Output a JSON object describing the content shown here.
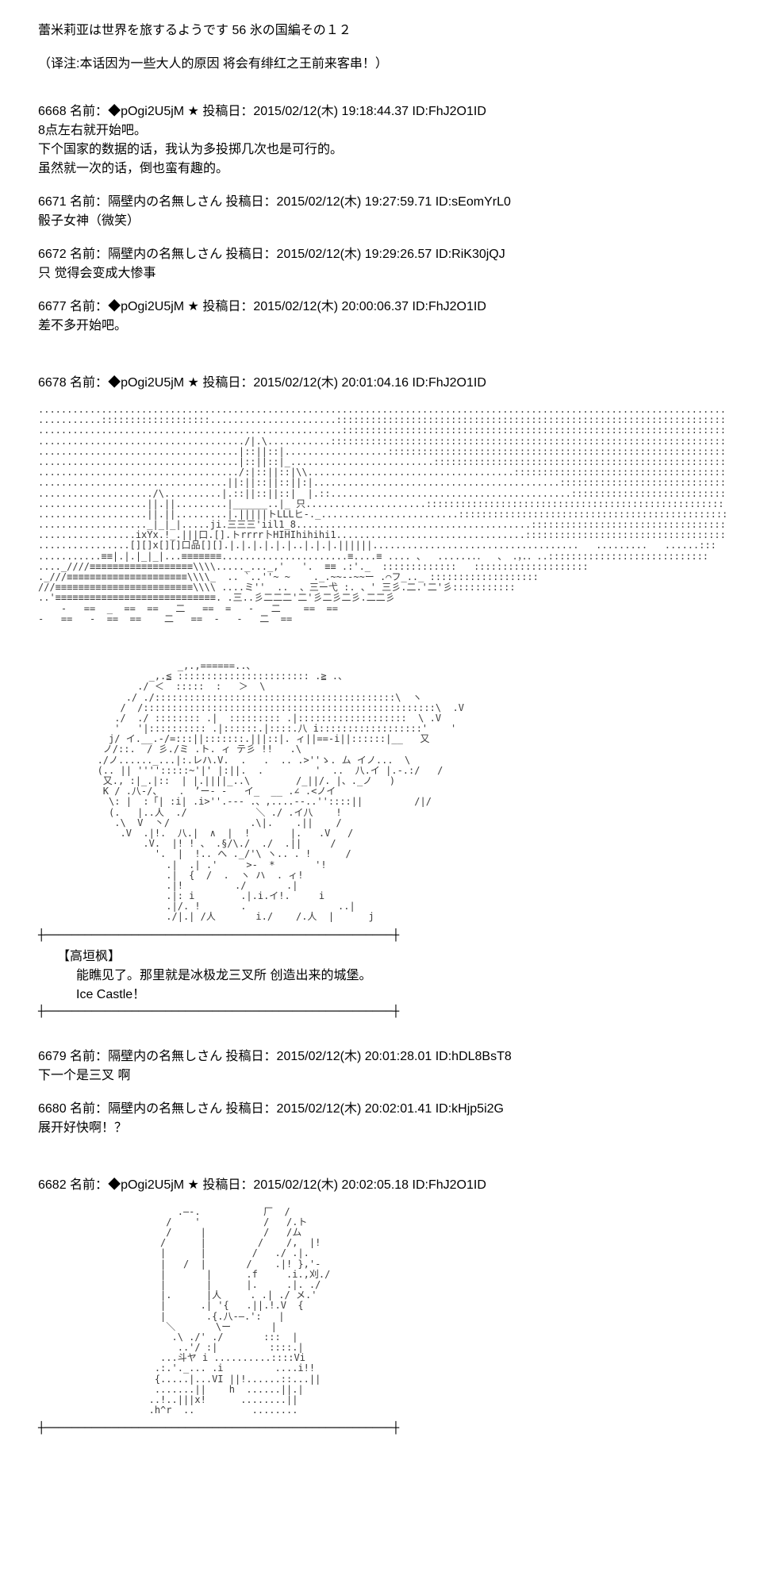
{
  "title": "蕾米莉亚は世界を旅するようです 56 氷の国編その１２",
  "subtitle": "（译注:本话因为一些大人的原因 将会有绯红之王前来客串！）",
  "posts": [
    {
      "number": "6668",
      "label": "名前：",
      "author": "◆pOgi2U5jM ★",
      "date_label": "投稿日：",
      "date": "2015/02/12(木) 19:18:44.37",
      "id_label": "ID:",
      "id": "FhJ2O1ID",
      "body": "8点左右就开始吧。\n下个国家的数据的话，我认为多投掷几次也是可行的。\n虽然就一次的话，倒也蛮有趣的。"
    },
    {
      "number": "6671",
      "label": "名前：",
      "author": "隔壁内の名無しさん",
      "date_label": "投稿日：",
      "date": "2015/02/12(木) 19:27:59.71",
      "id_label": "ID:",
      "id": "sEomYrL0",
      "body": "骰子女神（微笑）"
    },
    {
      "number": "6672",
      "label": "名前：",
      "author": "隔壁内の名無しさん",
      "date_label": "投稿日：",
      "date": "2015/02/12(木) 19:29:26.57",
      "id_label": "ID:",
      "id": "RiK30jQJ",
      "body": "只 觉得会变成大惨事"
    },
    {
      "number": "6677",
      "label": "名前：",
      "author": "◆pOgi2U5jM ★",
      "date_label": "投稿日：",
      "date": "2015/02/12(木) 20:00:06.37",
      "id_label": "ID:",
      "id": "FhJ2O1ID",
      "body": "差不多开始吧。"
    }
  ],
  "post_6678": {
    "number": "6678",
    "label": "名前：",
    "author": "◆pOgi2U5jM ★",
    "date_label": "投稿日：",
    "date": "2015/02/12(木) 20:01:04.16",
    "id_label": "ID:",
    "id": "FhJ2O1ID"
  },
  "ascii_castle": ".............................................................................................................................................\n...........:::::::::::::::::::......................:::::::::::::::::::::::::::::::::::::::::::::::::::::::::::::::::::::::::::::::::::::::::::::::::\n.....................................................:::::::::::::::::::::::::::::::::::::::::::::::::::::::::::::::::::::::::::::::::::::::::::::::::\n..................................../|.\\...........::::::::::::::::::::::::::::::::::::::::::::::::::::::::::::::::::::::::::::::::::::::::::::::::::\n...................................|::||::|..................::::::::::::::::::::::::::::::::::::::::::::::::::::::::::::::::::::::::::::::::::::::::\n...................................|::||::|_.........................:::::::::::::::::::::::::::::::::::::::::::::::::::::::::::::::::::::::::::::::::\n.................................../:|::||::|\\\\....................................::::::::::::::::::::::::::::::::::::::::::::::::::::::::::::::::::\n.................................||:||::||::||:|...........................................:::::::::::::::::::::::::::::::::::::::::::::::::::::::::::\n..................../\\..........|.::||::||::|  |.::..........................................::::::::::::::::::::::::::::::::::::::::::::::::::::::::\n...................||.||.........|______..|_ 只.....................:::::::::::::::::::::::::::::::::::::::::::::::::::::::::::::::::::::::::::::::::\n...................||.||.........|.|||||トLLLヒ‐._........................::::::::::::::::::::::::::::::::::::::::::::::::::::::::::::::::::::::::::\n..................._|_|_|.....ji.三三三'iil1_8.........................................:::::::::::::::::::::::::::::::::::::::::::::::::::::::::::\n.................ixYx.!_.|||口.[].トrrrr卜HIHIhihihi1.................................:::::::::::::::::::::::::::::::::::::::::::::::::::::::::::\n................[][]x[][]口品[][].|.|.|.|.|.|..|.|.|.||||||....................................   .........   ......:::  : ::.. .:::::::::::::::::\n...........≡≡|.|.|_|_|...≡≡≡≡≡≡≡......................≡....≡ .... 、  ......．．  、 ．，．．..::::::::::::::::::::::::::::\n...._////≡≡≡≡≡≡≡≡≡≡≡≡≡≡≡≡≡≡\\\\\\\\....._..._,'   '.  ≡≡ .:'._  :::::::::::::   ::::::::::::::::::::\n._///≡≡≡≡≡≡≡≡≡≡≡≡≡≡≡≡≡≡≡≡≡\\\\\\\\_  .. `..''~ ~    ._.~~--~~ー .⌒フ_.._ :::::::::::::::::::\n///≡≡≡≡≡≡≡≡≡≡≡≡≡≡≡≡≡≡≡≡≡≡≡≡\\\\\\\\ ....ミ''  ..  、三ー弋 :. 、' 三彡.二.'二'彡:::::::::::\n..'≡≡≡≡≡≡≡≡≡≡≡≡≡≡≡≡≡≡≡≡≡≡≡≡≡≡≡≡. .三..彡二二二'二'彡二彡二彡.二二彡\n    -   ==  _  ==  ==   二   ==  =   -   二    ==  ==\n-   ==   -  ==  ==    二   ==  -   -   二  ==",
  "ascii_girl": "                     _,.,======..、\n                _,.≦ ::::::::::::::::::::::: .≧ .、\n              ./ ＜  :::::  :   ＞  \\\n            ./ ./::::::::::::::::::::::::::::::::::::::::::\\  ヽ\n           /  /:::::::::::::::::::::::::::::::::::::::::::::::::::\\  .V\n          ./  ./ :::::::: .|  ::::::::: .|:::::::::::::::::::  \\ .V\n          '   '|:::::::::: .|::::::.|::::.八 i::::::::::::::::::'    '\n         j/ イ.__.‐/=:::||:::::::.|||::|. ィ||==-i||::::::|__   又\n        ノ/::.  / 彡./ミ .ト. ィ テ彡 !!   .\\\n       ./ノ......_...|:.レハ.V.  .   .  .. .>''ゝ. ム イノ...  \\\n       (.. || '''':::::~'|' |:||.  .         '  ..  八.イ |.-.:/   /\n        又., :|_.|::  | |.||||_..\\        /_||/. |、._ノ   )\n        K / .八-/、   ． ’ー- -   イ_  __ .∠ .<ノイ\n         \\: |  :「| :i| .i>''.--- .、,....--..''::::||         /|/\n         (.   |..人  ./            ＼ ./ .イ八    !\n          .\\  V  丶/              .\\|.    .||    /\n           .V  .|!.  八.|  ∧  |  !       |.   .V   /\n               .V.  |! ! 、 .§/\\./  ./  .||     /\n                 '.  |  !.. へ ._/'\\ ヽ.. . !      /\n                   .|  .| .'     >-  *       '!\n                   .|  {  /  .  ヽ ハ  . ィ!\n                   .|!         ./       .|\n                   .|: i        .|.i.イ!.     i\n                   .|/. !       .                ..|\n                   ./|.| /人       i./    /.人  |      j",
  "divider": "┼────────────────────────────────────────────────────┼",
  "character_name": "【高垣枫】",
  "dialogue_line1": "能瞧见了。那里就是冰极龙三叉所 创造出来的城堡。",
  "dialogue_line2": "Ice Castle！",
  "post_6679": {
    "number": "6679",
    "label": "名前：",
    "author": "隔壁内の名無しさん",
    "date_label": "投稿日：",
    "date": "2015/02/12(木) 20:01:28.01",
    "id_label": "ID:",
    "id": "hDL8BsT8",
    "body": "下一个是三叉 啊"
  },
  "post_6680": {
    "number": "6680",
    "label": "名前：",
    "author": "隔壁内の名無しさん",
    "date_label": "投稿日：",
    "date": "2015/02/12(木) 20:02:01.41",
    "id_label": "ID:",
    "id": "kHjp5i2G",
    "body": "展开好快啊！？"
  },
  "post_6682": {
    "number": "6682",
    "label": "名前：",
    "author": "◆pOgi2U5jM ★",
    "date_label": "投稿日：",
    "date": "2015/02/12(木) 20:02:05.18",
    "id_label": "ID:",
    "id": "FhJ2O1ID"
  },
  "ascii_person": "                     .―-.           厂  /\n                   /    '           /   /.ト\n                   /     |          /   /ム\n                  /      |         /    /,  |!\n                  |      |        /   ./ .|.\n                  |   /  |       /    .|! },'-\n                  |       |      .f     .i.,刈./\n                  |       |      |.     .|. ./\n                  |.      |人     . .| ./ メ.'\n                  |      .| '{   .||.!.V  {\n                  |       .{.八-―.':   |\n                   ＼       \\ー       |\n                    .\\ ./' ./       :::  |\n                     ..'/ :|         ::::.|\n                  ...斗ヤ i ..........::::Vi\n                 .:.'._... .i         ....i!!\n                 {.....|...VI ||!......::...||\n                 .......||    h  ......||.|\n                ..!..|||x!      ........||\n                .h^r  ..          ........"
}
